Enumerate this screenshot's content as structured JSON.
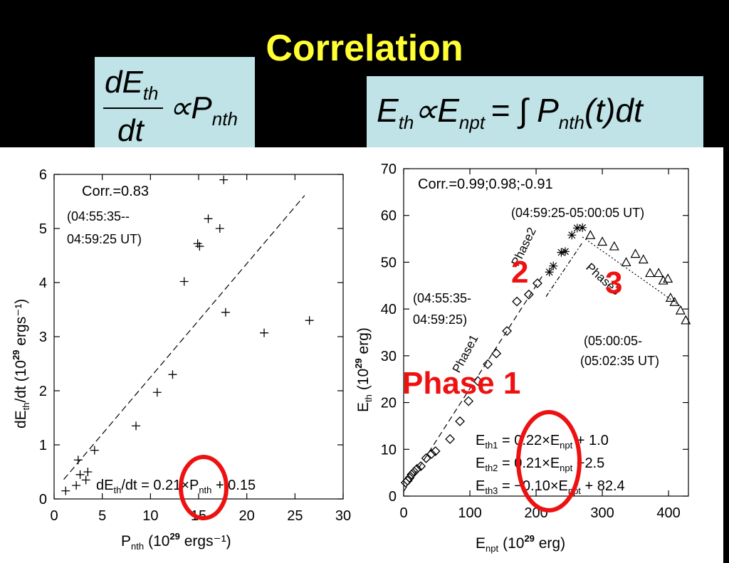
{
  "slide": {
    "title": "Correlation",
    "formula_left": {
      "numerator": "dE",
      "numerator_sub": "th",
      "denominator": "dt",
      "rhs": "∝P",
      "rhs_sub": "nth"
    },
    "formula_right": {
      "lhs": "E",
      "lhs_sub": "th",
      "mid": "∝E",
      "mid_sub": "npt",
      "rhs": "= ∫ P",
      "rhs_sub": "nth",
      "rhs_tail": "(t)dt"
    },
    "colors": {
      "title": "#ffff33",
      "formula_bg": "#bfe3e6",
      "highlight": "#ee1111"
    }
  },
  "chart_data": [
    {
      "type": "scatter",
      "xlabel": "P",
      "xlabel_sub": "nth",
      "xlabel_units": "(10",
      "xlabel_sup": "29",
      "xlabel_units_tail": " ergs⁻¹)",
      "ylabel": "dE",
      "ylabel_sub": "th",
      "ylabel_units": "/dt (10",
      "ylabel_sup": "29",
      "ylabel_units_tail": " ergs⁻¹)",
      "xlim": [
        0,
        30
      ],
      "ylim": [
        0,
        6
      ],
      "xticks": [
        0,
        5,
        10,
        15,
        20,
        25,
        30
      ],
      "yticks": [
        0,
        1,
        2,
        3,
        4,
        5,
        6
      ],
      "points": [
        [
          1.2,
          0.15
        ],
        [
          2.3,
          0.25
        ],
        [
          2.5,
          0.72
        ],
        [
          2.7,
          0.45
        ],
        [
          3.3,
          0.35
        ],
        [
          3.5,
          0.5
        ],
        [
          4.2,
          0.9
        ],
        [
          8.5,
          1.35
        ],
        [
          10.7,
          1.97
        ],
        [
          12.3,
          2.3
        ],
        [
          13.5,
          4.02
        ],
        [
          14.9,
          4.72
        ],
        [
          15.1,
          4.67
        ],
        [
          16,
          5.18
        ],
        [
          17.2,
          5.0
        ],
        [
          17.6,
          5.9
        ],
        [
          17.8,
          3.45
        ],
        [
          21.8,
          3.07
        ],
        [
          26.5,
          3.3
        ]
      ],
      "fit": {
        "x": [
          1,
          26
        ],
        "slope": 0.21,
        "intercept": 0.15
      },
      "annotations": {
        "corr": "Corr.=0.83",
        "time1": "(04:55:35--",
        "time2": "04:59:25 UT)"
      },
      "equation": {
        "lhs": "dE",
        "lhs_sub": "th",
        "mid": "/dt = ",
        "coef": "0.21",
        "times": "×",
        "var": "P",
        "var_sub": "nth",
        "tail": " + 0.15"
      }
    },
    {
      "type": "scatter",
      "xlabel": "E",
      "xlabel_sub": "npt",
      "xlabel_units": "(10",
      "xlabel_sup": "29",
      "xlabel_units_tail": " erg)",
      "ylabel": "E",
      "ylabel_sub": "th",
      "ylabel_units": "(10",
      "ylabel_sup": "29",
      "ylabel_units_tail": " erg)",
      "xlim": [
        0,
        430
      ],
      "ylim": [
        0,
        70
      ],
      "xticks": [
        0,
        100,
        200,
        300,
        400
      ],
      "yticks": [
        0,
        10,
        20,
        30,
        40,
        50,
        60,
        70
      ],
      "series": [
        {
          "name": "Phase1",
          "marker": "diamond",
          "points": [
            [
              3,
              2.9
            ],
            [
              6,
              3.3
            ],
            [
              9,
              3.9
            ],
            [
              12,
              4.6
            ],
            [
              16,
              5.2
            ],
            [
              20,
              5.8
            ],
            [
              26,
              6.4
            ],
            [
              34,
              8.1
            ],
            [
              42,
              9.0
            ],
            [
              48,
              9.6
            ],
            [
              70,
              12.2
            ],
            [
              85,
              16
            ],
            [
              98,
              20.3
            ],
            [
              112,
              24.6
            ],
            [
              127,
              28.2
            ],
            [
              140,
              30.5
            ],
            [
              156,
              35.3
            ],
            [
              171,
              41.6
            ],
            [
              189,
              43.1
            ],
            [
              202,
              45.5
            ]
          ],
          "fit": {
            "x": [
              0,
              210
            ],
            "slope": 0.22,
            "intercept": 1.0
          }
        },
        {
          "name": "Phase2",
          "marker": "asterisk",
          "points": [
            [
              220,
              47.9
            ],
            [
              226,
              49.2
            ],
            [
              238,
              52.1
            ],
            [
              244,
              52.3
            ],
            [
              254,
              55.8
            ],
            [
              262,
              57.3
            ],
            [
              270,
              57.4
            ]
          ],
          "fit": {
            "x": [
              215,
              270
            ],
            "slope": 0.21,
            "intercept": -2.5
          }
        },
        {
          "name": "Phase3",
          "marker": "triangle",
          "points": [
            [
              282,
              55.8
            ],
            [
              300,
              54.4
            ],
            [
              318,
              53.4
            ],
            [
              336,
              50.0
            ],
            [
              350,
              51.8
            ],
            [
              362,
              50.6
            ],
            [
              372,
              47.7
            ],
            [
              385,
              47.7
            ],
            [
              392,
              46.1
            ],
            [
              399,
              46.5
            ],
            [
              403,
              42.4
            ],
            [
              409,
              41.5
            ],
            [
              418,
              39.7
            ],
            [
              426,
              37.6
            ]
          ],
          "fit": {
            "x": [
              270,
              420
            ],
            "slope": -0.1,
            "intercept": 82.4
          }
        }
      ],
      "annotations": {
        "corr": "Corr.=0.99;0.98;-0.91",
        "time_p2": "(04:59:25-05:00:05 UT)",
        "time_p1_a": "(04:55:35-",
        "time_p1_b": "04:59:25)",
        "time_p3_a": "(05:00:05-",
        "time_p3_b": "(05:02:35 UT)",
        "label_phase1": "Phase1",
        "label_phase2": "Phase2",
        "label_phase3": "Phase3",
        "big_phase1": "Phase 1",
        "big_2": "2",
        "big_3": "3"
      },
      "equations": [
        {
          "lhs": "E",
          "lhs_sub": "th1",
          "coef": "= 0.22×E",
          "coef_sub": "npt",
          "tail": " + 1.0"
        },
        {
          "lhs": "E",
          "lhs_sub": "th2",
          "coef": "= 0.21×E",
          "coef_sub": "npt",
          "tail": " −2.5"
        },
        {
          "lhs": "E",
          "lhs_sub": "th3",
          "coef": "= −0.10×E",
          "coef_sub": "npt",
          "tail": " + 82.4"
        }
      ]
    }
  ]
}
